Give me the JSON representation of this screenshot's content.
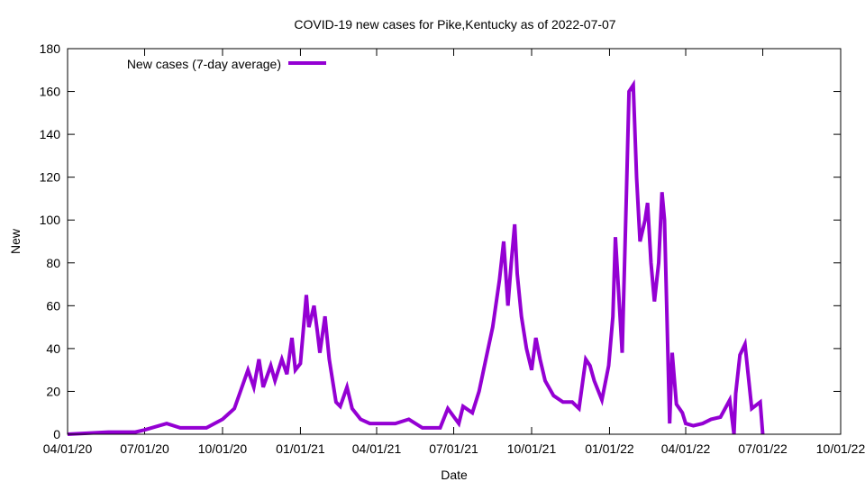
{
  "chart_data": {
    "type": "line",
    "title": "COVID-19 new cases for Pike,Kentucky as of 2022-07-07",
    "xlabel": "Date",
    "ylabel": "New",
    "ylim": [
      0,
      180
    ],
    "yticks": [
      0,
      20,
      40,
      60,
      80,
      100,
      120,
      140,
      160,
      180
    ],
    "xlim": [
      "2020-04-01",
      "2022-10-01"
    ],
    "xticks": [
      {
        "date": "2020-04-01",
        "label": "04/01/20"
      },
      {
        "date": "2020-07-01",
        "label": "07/01/20"
      },
      {
        "date": "2020-10-01",
        "label": "10/01/20"
      },
      {
        "date": "2021-01-01",
        "label": "01/01/21"
      },
      {
        "date": "2021-04-01",
        "label": "04/01/21"
      },
      {
        "date": "2021-07-01",
        "label": "07/01/21"
      },
      {
        "date": "2021-10-01",
        "label": "10/01/21"
      },
      {
        "date": "2022-01-01",
        "label": "01/01/22"
      },
      {
        "date": "2022-04-01",
        "label": "04/01/22"
      },
      {
        "date": "2022-07-01",
        "label": "07/01/22"
      },
      {
        "date": "2022-10-01",
        "label": "10/01/22"
      }
    ],
    "legend_position": "top-left",
    "grid": false,
    "series": [
      {
        "name": "New cases (7-day average)",
        "color": "#9400d3",
        "points": [
          [
            "2020-04-01",
            0
          ],
          [
            "2020-05-19",
            1
          ],
          [
            "2020-06-20",
            1
          ],
          [
            "2020-07-01",
            2
          ],
          [
            "2020-07-27",
            5
          ],
          [
            "2020-08-12",
            3
          ],
          [
            "2020-09-12",
            3
          ],
          [
            "2020-10-01",
            7
          ],
          [
            "2020-10-15",
            12
          ],
          [
            "2020-10-31",
            30
          ],
          [
            "2020-11-07",
            22
          ],
          [
            "2020-11-13",
            35
          ],
          [
            "2020-11-18",
            22
          ],
          [
            "2020-11-27",
            32
          ],
          [
            "2020-12-02",
            25
          ],
          [
            "2020-12-10",
            35
          ],
          [
            "2020-12-16",
            28
          ],
          [
            "2020-12-22",
            45
          ],
          [
            "2020-12-26",
            30
          ],
          [
            "2021-01-01",
            33
          ],
          [
            "2021-01-08",
            65
          ],
          [
            "2021-01-11",
            50
          ],
          [
            "2021-01-17",
            60
          ],
          [
            "2021-01-21",
            48
          ],
          [
            "2021-01-24",
            38
          ],
          [
            "2021-01-30",
            55
          ],
          [
            "2021-02-04",
            35
          ],
          [
            "2021-02-12",
            15
          ],
          [
            "2021-02-17",
            13
          ],
          [
            "2021-02-25",
            22
          ],
          [
            "2021-03-03",
            12
          ],
          [
            "2021-03-13",
            7
          ],
          [
            "2021-03-24",
            5
          ],
          [
            "2021-04-01",
            5
          ],
          [
            "2021-04-23",
            5
          ],
          [
            "2021-05-09",
            7
          ],
          [
            "2021-05-25",
            3
          ],
          [
            "2021-06-15",
            3
          ],
          [
            "2021-06-24",
            12
          ],
          [
            "2021-07-07",
            5
          ],
          [
            "2021-07-12",
            13
          ],
          [
            "2021-07-23",
            10
          ],
          [
            "2021-07-31",
            20
          ],
          [
            "2021-08-08",
            35
          ],
          [
            "2021-08-16",
            50
          ],
          [
            "2021-08-24",
            72
          ],
          [
            "2021-08-29",
            90
          ],
          [
            "2021-09-03",
            60
          ],
          [
            "2021-09-07",
            80
          ],
          [
            "2021-09-11",
            98
          ],
          [
            "2021-09-14",
            75
          ],
          [
            "2021-09-19",
            55
          ],
          [
            "2021-09-25",
            40
          ],
          [
            "2021-10-01",
            30
          ],
          [
            "2021-10-06",
            45
          ],
          [
            "2021-10-11",
            35
          ],
          [
            "2021-10-17",
            25
          ],
          [
            "2021-10-27",
            18
          ],
          [
            "2021-11-07",
            15
          ],
          [
            "2021-11-18",
            15
          ],
          [
            "2021-11-26",
            12
          ],
          [
            "2021-12-04",
            35
          ],
          [
            "2021-12-09",
            32
          ],
          [
            "2021-12-14",
            25
          ],
          [
            "2021-12-23",
            16
          ],
          [
            "2021-12-31",
            32
          ],
          [
            "2022-01-05",
            55
          ],
          [
            "2022-01-08",
            92
          ],
          [
            "2022-01-16",
            38
          ],
          [
            "2022-01-21",
            112
          ],
          [
            "2022-01-24",
            160
          ],
          [
            "2022-01-29",
            163
          ],
          [
            "2022-02-02",
            120
          ],
          [
            "2022-02-06",
            90
          ],
          [
            "2022-02-12",
            100
          ],
          [
            "2022-02-15",
            108
          ],
          [
            "2022-02-19",
            80
          ],
          [
            "2022-02-23",
            62
          ],
          [
            "2022-02-28",
            80
          ],
          [
            "2022-03-04",
            113
          ],
          [
            "2022-03-07",
            100
          ],
          [
            "2022-03-13",
            5
          ],
          [
            "2022-03-16",
            38
          ],
          [
            "2022-03-21",
            14
          ],
          [
            "2022-03-28",
            10
          ],
          [
            "2022-04-01",
            5
          ],
          [
            "2022-04-10",
            4
          ],
          [
            "2022-04-21",
            5
          ],
          [
            "2022-05-01",
            7
          ],
          [
            "2022-05-12",
            8
          ],
          [
            "2022-05-23",
            16
          ],
          [
            "2022-05-28",
            0
          ],
          [
            "2022-05-30",
            19
          ],
          [
            "2022-06-04",
            37
          ],
          [
            "2022-06-10",
            42
          ],
          [
            "2022-06-18",
            12
          ],
          [
            "2022-06-28",
            15
          ],
          [
            "2022-07-01",
            0
          ]
        ]
      }
    ]
  }
}
